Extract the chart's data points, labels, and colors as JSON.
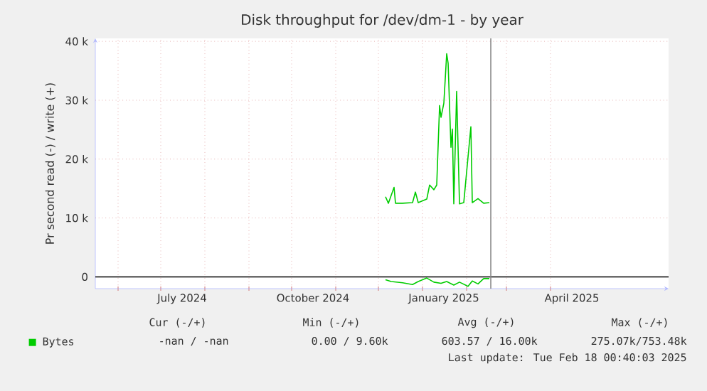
{
  "chart_data": {
    "type": "line",
    "title": "Disk throughput for /dev/dm-1 - by year",
    "ylabel": "Pr second read (-) / write (+)",
    "xlim": [
      "2024-05-16",
      "2025-06-23"
    ],
    "ylim": [
      -2000,
      40500
    ],
    "xticks": [
      {
        "value": "2024-06-01",
        "label": null
      },
      {
        "value": "2024-07-01",
        "label": null
      },
      {
        "value": "2024-07-16",
        "label": "July 2024"
      },
      {
        "value": "2024-08-01",
        "label": null
      },
      {
        "value": "2024-09-01",
        "label": null
      },
      {
        "value": "2024-10-01",
        "label": null
      },
      {
        "value": "2024-10-16",
        "label": "October 2024"
      },
      {
        "value": "2024-11-01",
        "label": null
      },
      {
        "value": "2024-12-01",
        "label": null
      },
      {
        "value": "2025-01-01",
        "label": null
      },
      {
        "value": "2025-01-16",
        "label": "January 2025"
      },
      {
        "value": "2025-02-01",
        "label": null
      },
      {
        "value": "2025-03-01",
        "label": null
      },
      {
        "value": "2025-04-01",
        "label": null
      },
      {
        "value": "2025-04-16",
        "label": "April 2025"
      }
    ],
    "yticks": [
      0,
      {
        "value": 10000,
        "label": "10 k"
      },
      {
        "value": 20000,
        "label": "20 k"
      },
      {
        "value": 30000,
        "label": "30 k"
      },
      {
        "value": 40000,
        "label": "40 k"
      }
    ],
    "grid": true,
    "legend": "bottom left",
    "marker": "none",
    "line_style": "solid",
    "series": [
      {
        "name": "Bytes",
        "color": "#00cc00",
        "x": [
          "2024-12-06",
          "2024-12-08",
          "2024-12-12",
          "2024-12-13",
          "2024-12-18",
          "2024-12-25",
          "2024-12-27",
          "2024-12-29",
          "2025-01-04",
          "2025-01-06",
          "2025-01-09",
          "2025-01-11",
          "2025-01-13",
          "2025-01-14",
          "2025-01-16",
          "2025-01-18",
          "2025-01-19",
          "2025-01-21",
          "2025-01-22",
          "2025-01-23",
          "2025-01-25",
          "2025-01-27",
          "2025-01-30",
          "2025-02-04",
          "2025-02-05",
          "2025-02-09",
          "2025-02-13",
          "2025-02-17"
        ],
        "values": [
          13600,
          12500,
          15200,
          12500,
          12500,
          12600,
          14400,
          12600,
          13200,
          15600,
          14800,
          15600,
          29100,
          27100,
          29500,
          37900,
          36300,
          22000,
          25100,
          12400,
          31500,
          12400,
          12600,
          25500,
          12600,
          13300,
          12500,
          12600
        ]
      },
      {
        "color": "#00cc00",
        "x": [
          "2024-12-06",
          "2024-12-10",
          "2024-12-18",
          "2024-12-25",
          "2024-12-29",
          "2025-01-04",
          "2025-01-09",
          "2025-01-14",
          "2025-01-18",
          "2025-01-23",
          "2025-01-27",
          "2025-02-02",
          "2025-02-05",
          "2025-02-09",
          "2025-02-13",
          "2025-02-17"
        ],
        "values": [
          -500,
          -800,
          -1000,
          -1300,
          -800,
          -200,
          -900,
          -1100,
          -800,
          -1400,
          -900,
          -1600,
          -700,
          -1200,
          -300,
          -300
        ]
      }
    ],
    "ref_lines": [
      {
        "axis": "y",
        "value": 0,
        "color": "#000000"
      },
      {
        "axis": "x",
        "value": "2025-02-18",
        "color": "#888888"
      }
    ],
    "annotations": [
      "Cur (-/+)",
      "Min (-/+)",
      "Avg (-/+)",
      "Max (-/+)",
      "-nan /  -nan",
      "0.00 /  9.60k",
      "603.57 / 16.00k",
      "275.07k/753.48k",
      "Last update: Tue Feb 18 00:40:03 2025"
    ]
  }
}
